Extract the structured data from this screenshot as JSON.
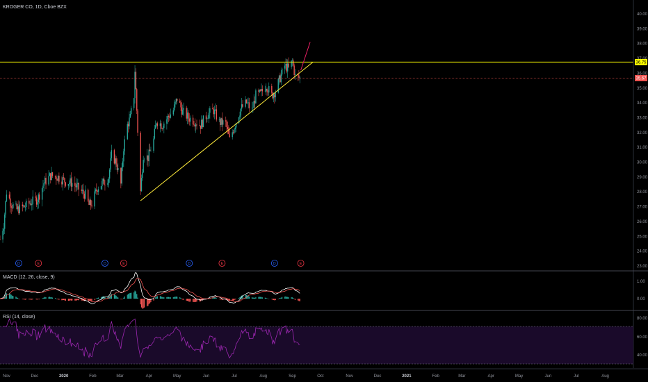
{
  "main": {
    "title": "KROGER CO, 1D, Cboe BZX",
    "price_ticks": [
      "40.00",
      "39.00",
      "38.00",
      "37.00",
      "36.00",
      "35.00",
      "34.00",
      "33.00",
      "32.00",
      "31.00",
      "30.00",
      "29.00",
      "28.00",
      "27.00",
      "26.00",
      "25.00",
      "24.00",
      "23.00"
    ],
    "resistance_label": "36.75",
    "last_price_label": "35.67",
    "resistance_color": "#ffff00",
    "last_price_color": "#ef5350"
  },
  "macd": {
    "title": "MACD (12, 26, close, 9)",
    "ticks": [
      "1.00",
      "0.00"
    ]
  },
  "rsi": {
    "title": "RSI (14, close)",
    "ticks": [
      "80.00",
      "60.00",
      "40.00"
    ],
    "line_color": "#9c27b0"
  },
  "time_axis": {
    "labels": [
      "Nov",
      "Dec",
      "2020",
      "Feb",
      "Mar",
      "Apr",
      "May",
      "Jun",
      "Jul",
      "Aug",
      "Sep",
      "Oct",
      "Nov",
      "Dec",
      "2021",
      "Feb",
      "Mar",
      "Apr",
      "May",
      "Jun",
      "Jul",
      "Aug"
    ]
  },
  "events": [
    {
      "letter": "D",
      "kind": "dividend"
    },
    {
      "letter": "E",
      "kind": "earnings"
    },
    {
      "letter": "D",
      "kind": "dividend"
    },
    {
      "letter": "E",
      "kind": "earnings"
    },
    {
      "letter": "D",
      "kind": "dividend"
    },
    {
      "letter": "E",
      "kind": "earnings"
    },
    {
      "letter": "D",
      "kind": "dividend"
    },
    {
      "letter": "E",
      "kind": "earnings"
    }
  ],
  "chart_data": {
    "type": "candlestick",
    "symbol": "KROGER CO",
    "interval": "1D",
    "ylim": [
      23,
      40.5
    ],
    "resistance_level": 36.75,
    "last_price": 35.67,
    "trendline": {
      "from": {
        "date": "2020-03-23",
        "price": 27.4
      },
      "to": {
        "date": "2020-09-23",
        "price": 36.75
      }
    },
    "projection_arrow": {
      "from": {
        "date": "2020-09-10",
        "price": 36.2
      },
      "to": {
        "date": "2020-09-20",
        "price": 38.1
      }
    },
    "price_path": [
      [
        "2019-10-25",
        24.8
      ],
      [
        "2019-10-29",
        25.8
      ],
      [
        "2019-11-01",
        28.0
      ],
      [
        "2019-11-06",
        27.2
      ],
      [
        "2019-11-12",
        26.8
      ],
      [
        "2019-11-20",
        27.0
      ],
      [
        "2019-11-27",
        27.3
      ],
      [
        "2019-12-04",
        27.5
      ],
      [
        "2019-12-11",
        28.6
      ],
      [
        "2019-12-18",
        29.1
      ],
      [
        "2019-12-26",
        29.0
      ],
      [
        "2020-01-03",
        28.7
      ],
      [
        "2020-01-10",
        28.6
      ],
      [
        "2020-01-17",
        28.2
      ],
      [
        "2020-01-24",
        27.8
      ],
      [
        "2020-01-28",
        27.1
      ],
      [
        "2020-01-31",
        27.2
      ],
      [
        "2020-02-06",
        28.3
      ],
      [
        "2020-02-12",
        28.6
      ],
      [
        "2020-02-18",
        29.0
      ],
      [
        "2020-02-21",
        30.5
      ],
      [
        "2020-02-26",
        30.0
      ],
      [
        "2020-03-02",
        28.5
      ],
      [
        "2020-03-05",
        31.0
      ],
      [
        "2020-03-09",
        32.5
      ],
      [
        "2020-03-12",
        33.0
      ],
      [
        "2020-03-16",
        34.5
      ],
      [
        "2020-03-17",
        36.2
      ],
      [
        "2020-03-19",
        33.5
      ],
      [
        "2020-03-23",
        28.0
      ],
      [
        "2020-03-26",
        30.5
      ],
      [
        "2020-03-31",
        30.3
      ],
      [
        "2020-04-06",
        31.5
      ],
      [
        "2020-04-09",
        32.8
      ],
      [
        "2020-04-15",
        32.5
      ],
      [
        "2020-04-21",
        33.0
      ],
      [
        "2020-04-27",
        33.5
      ],
      [
        "2020-05-01",
        34.3
      ],
      [
        "2020-05-07",
        33.4
      ],
      [
        "2020-05-13",
        33.0
      ],
      [
        "2020-05-19",
        32.8
      ],
      [
        "2020-05-26",
        32.5
      ],
      [
        "2020-06-02",
        33.2
      ],
      [
        "2020-06-09",
        33.5
      ],
      [
        "2020-06-15",
        32.7
      ],
      [
        "2020-06-22",
        32.6
      ],
      [
        "2020-06-26",
        31.5
      ],
      [
        "2020-07-01",
        32.4
      ],
      [
        "2020-07-08",
        33.6
      ],
      [
        "2020-07-14",
        34.0
      ],
      [
        "2020-07-20",
        33.5
      ],
      [
        "2020-07-24",
        34.5
      ],
      [
        "2020-07-29",
        34.6
      ],
      [
        "2020-08-04",
        35.2
      ],
      [
        "2020-08-10",
        34.5
      ],
      [
        "2020-08-14",
        34.8
      ],
      [
        "2020-08-19",
        35.7
      ],
      [
        "2020-08-24",
        36.5
      ],
      [
        "2020-08-28",
        36.3
      ],
      [
        "2020-09-01",
        36.8
      ],
      [
        "2020-09-04",
        35.8
      ],
      [
        "2020-09-09",
        35.67
      ]
    ]
  }
}
